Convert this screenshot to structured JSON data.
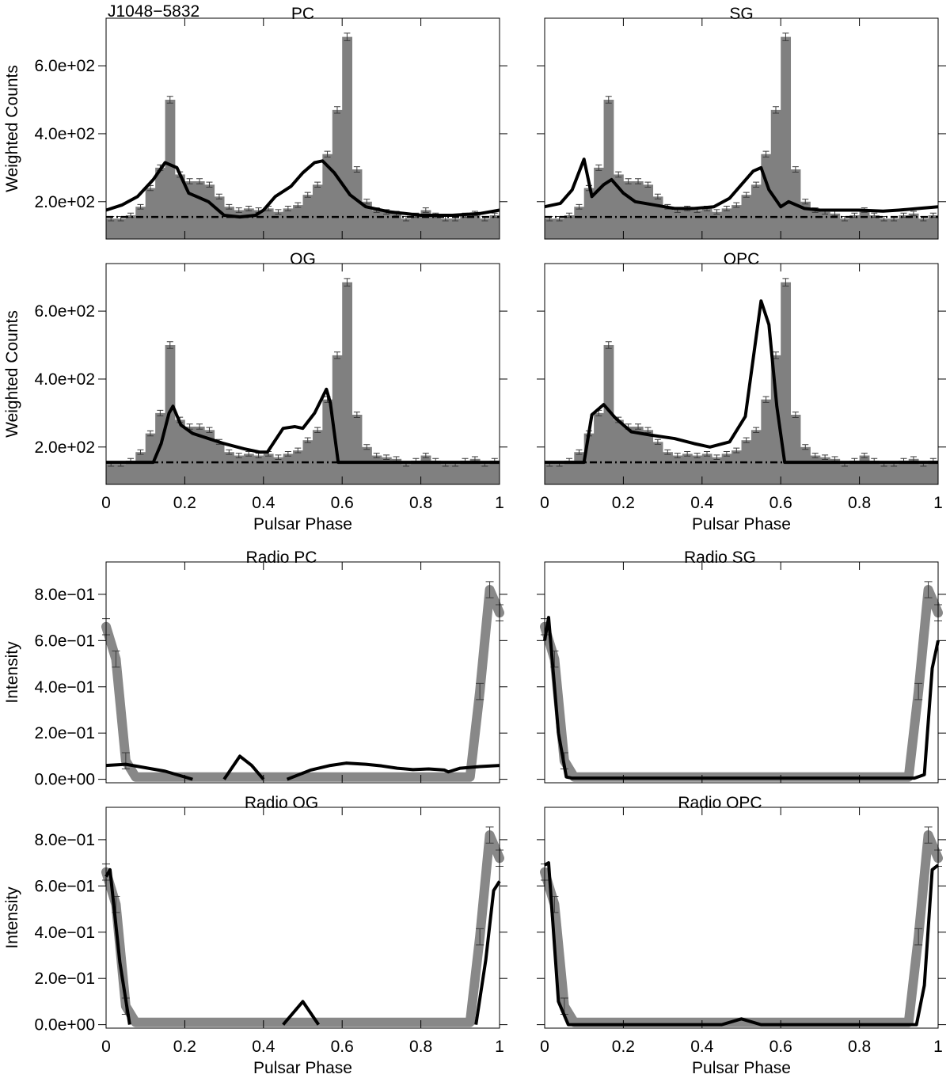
{
  "figure": {
    "pulsar_name": "J1048−5832",
    "gamma_ylabel": "Weighted Counts",
    "radio_ylabel": "Intensity",
    "xlabel": "Pulsar Phase"
  },
  "colors": {
    "histogram": "#808080",
    "error_bar": "#3a3a3a",
    "model": "#000000",
    "background": "#000000",
    "radio_data": "#888888"
  },
  "gamma_bins": [
    150,
    150,
    160,
    185,
    240,
    300,
    500,
    280,
    260,
    260,
    250,
    215,
    185,
    175,
    180,
    175,
    180,
    170,
    180,
    190,
    220,
    250,
    340,
    470,
    685,
    295,
    200,
    175,
    170,
    165,
    150,
    160,
    175,
    160,
    150,
    150,
    160,
    165,
    150,
    160
  ],
  "radio_data_curve": [
    0.66,
    0.52,
    0.08,
    0.01,
    0.01,
    0.01,
    0.01,
    0.01,
    0.01,
    0.01,
    0.01,
    0.01,
    0.01,
    0.01,
    0.01,
    0.01,
    0.01,
    0.01,
    0.01,
    0.01,
    0.01,
    0.01,
    0.01,
    0.01,
    0.01,
    0.01,
    0.01,
    0.01,
    0.01,
    0.01,
    0.01,
    0.01,
    0.01,
    0.01,
    0.01,
    0.01,
    0.01,
    0.01,
    0.38,
    0.82,
    0.72
  ],
  "chart_data": [
    {
      "type": "bar",
      "title": "PC",
      "xlabel": "",
      "ylabel": "Weighted Counts",
      "xlim": [
        0,
        1
      ],
      "ylim": [
        90,
        740
      ],
      "yticks": [
        200,
        400,
        600
      ],
      "ytick_labels": [
        "2.0e+02",
        "4.0e+02",
        "6.0e+02"
      ],
      "background_level": 155,
      "model": {
        "x": [
          0,
          0.04,
          0.08,
          0.12,
          0.15,
          0.18,
          0.21,
          0.23,
          0.26,
          0.3,
          0.34,
          0.38,
          0.4,
          0.43,
          0.47,
          0.5,
          0.53,
          0.55,
          0.58,
          0.62,
          0.66,
          0.72,
          0.8,
          0.88,
          0.95,
          1.0
        ],
        "y": [
          175,
          190,
          215,
          265,
          315,
          300,
          225,
          215,
          200,
          160,
          155,
          160,
          175,
          215,
          245,
          285,
          315,
          320,
          285,
          220,
          185,
          170,
          160,
          160,
          165,
          175
        ]
      },
      "panel_label": "J1048−5832"
    },
    {
      "type": "bar",
      "title": "SG",
      "xlabel": "",
      "ylabel": "",
      "xlim": [
        0,
        1
      ],
      "ylim": [
        90,
        740
      ],
      "yticks": [
        200,
        400,
        600
      ],
      "ytick_labels": [
        "",
        "",
        ""
      ],
      "background_level": 155,
      "model": {
        "x": [
          0,
          0.04,
          0.07,
          0.1,
          0.12,
          0.15,
          0.17,
          0.2,
          0.23,
          0.28,
          0.33,
          0.38,
          0.43,
          0.47,
          0.5,
          0.53,
          0.55,
          0.57,
          0.6,
          0.62,
          0.66,
          0.7,
          0.75,
          0.8,
          0.86,
          0.9,
          0.95,
          1.0
        ],
        "y": [
          185,
          195,
          235,
          325,
          215,
          250,
          265,
          225,
          200,
          190,
          180,
          180,
          185,
          210,
          250,
          290,
          300,
          235,
          185,
          200,
          180,
          175,
          175,
          175,
          172,
          175,
          180,
          185
        ]
      }
    },
    {
      "type": "bar",
      "title": "OG",
      "xlabel": "Pulsar Phase",
      "ylabel": "Weighted Counts",
      "xlim": [
        0,
        1
      ],
      "ylim": [
        90,
        740
      ],
      "yticks": [
        200,
        400,
        600
      ],
      "ytick_labels": [
        "2.0e+02",
        "4.0e+02",
        "6.0e+02"
      ],
      "xticks": [
        0,
        0.2,
        0.4,
        0.6,
        0.8,
        1
      ],
      "xtick_labels": [
        "0",
        "0.2",
        "0.4",
        "0.6",
        "0.8",
        "1"
      ],
      "background_level": 155,
      "model": {
        "x": [
          0,
          0.12,
          0.14,
          0.16,
          0.17,
          0.19,
          0.22,
          0.26,
          0.3,
          0.35,
          0.39,
          0.41,
          0.45,
          0.48,
          0.5,
          0.53,
          0.56,
          0.57,
          0.59,
          0.62,
          1.0
        ],
        "y": [
          155,
          155,
          210,
          300,
          320,
          265,
          240,
          225,
          210,
          195,
          185,
          185,
          255,
          260,
          255,
          300,
          370,
          330,
          155,
          155,
          155
        ]
      }
    },
    {
      "type": "bar",
      "title": "OPC",
      "xlabel": "Pulsar Phase",
      "ylabel": "",
      "xlim": [
        0,
        1
      ],
      "ylim": [
        90,
        740
      ],
      "yticks": [
        200,
        400,
        600
      ],
      "ytick_labels": [
        "",
        "",
        ""
      ],
      "xticks": [
        0,
        0.2,
        0.4,
        0.6,
        0.8,
        1
      ],
      "xtick_labels": [
        "0",
        "0.2",
        "0.4",
        "0.6",
        "0.8",
        "1"
      ],
      "background_level": 155,
      "model": {
        "x": [
          0,
          0.1,
          0.12,
          0.15,
          0.18,
          0.22,
          0.27,
          0.33,
          0.38,
          0.42,
          0.47,
          0.51,
          0.53,
          0.55,
          0.57,
          0.59,
          0.61,
          1.0
        ],
        "y": [
          155,
          155,
          295,
          325,
          285,
          245,
          235,
          225,
          210,
          200,
          215,
          290,
          460,
          630,
          560,
          320,
          155,
          155
        ]
      }
    },
    {
      "type": "line",
      "title": "Radio PC",
      "xlabel": "",
      "ylabel": "Intensity",
      "xlim": [
        0,
        1
      ],
      "ylim": [
        -0.015,
        0.94
      ],
      "yticks": [
        0,
        0.2,
        0.4,
        0.6,
        0.8
      ],
      "ytick_labels": [
        "0.0e+00",
        "2.0e−01",
        "4.0e−01",
        "6.0e−01",
        "8.0e−01"
      ],
      "model_segments": [
        {
          "x": [
            0,
            0.05,
            0.1,
            0.15,
            0.19,
            0.22
          ],
          "y": [
            0.06,
            0.065,
            0.05,
            0.035,
            0.015,
            0
          ]
        },
        {
          "x": [
            0.3,
            0.34,
            0.37,
            0.4
          ],
          "y": [
            0,
            0.1,
            0.06,
            0
          ]
        },
        {
          "x": [
            0.46,
            0.52,
            0.57,
            0.61,
            0.66,
            0.7,
            0.74,
            0.78,
            0.82,
            0.86,
            0.87,
            0.9,
            0.95,
            1.0
          ],
          "y": [
            0,
            0.04,
            0.06,
            0.07,
            0.065,
            0.058,
            0.048,
            0.042,
            0.045,
            0.04,
            0.032,
            0.048,
            0.055,
            0.06
          ]
        }
      ]
    },
    {
      "type": "line",
      "title": "Radio SG",
      "xlabel": "",
      "ylabel": "",
      "xlim": [
        0,
        1
      ],
      "ylim": [
        -0.015,
        0.94
      ],
      "yticks": [
        0,
        0.2,
        0.4,
        0.6,
        0.8
      ],
      "ytick_labels": [
        "",
        "",
        "",
        "",
        ""
      ],
      "model_segments": [
        {
          "x": [
            0,
            0.01,
            0.035,
            0.055,
            0.07,
            0.94,
            0.965,
            0.985,
            1.0
          ],
          "y": [
            0.6,
            0.7,
            0.2,
            0.01,
            0.005,
            0.005,
            0.02,
            0.48,
            0.6
          ]
        }
      ]
    },
    {
      "type": "line",
      "title": "Radio OG",
      "xlabel": "Pulsar Phase",
      "ylabel": "Intensity",
      "xlim": [
        0,
        1
      ],
      "ylim": [
        -0.015,
        0.94
      ],
      "yticks": [
        0,
        0.2,
        0.4,
        0.6,
        0.8
      ],
      "ytick_labels": [
        "0.0e+00",
        "2.0e−01",
        "4.0e−01",
        "6.0e−01",
        "8.0e−01"
      ],
      "xticks": [
        0,
        0.2,
        0.4,
        0.6,
        0.8,
        1
      ],
      "xtick_labels": [
        "0",
        "0.2",
        "0.4",
        "0.6",
        "0.8",
        "1"
      ],
      "model_segments": [
        {
          "x": [
            0,
            0.01,
            0.035,
            0.06
          ],
          "y": [
            0.64,
            0.67,
            0.27,
            0
          ]
        },
        {
          "x": [
            0.45,
            0.5,
            0.54
          ],
          "y": [
            0,
            0.1,
            0
          ]
        },
        {
          "x": [
            0.94,
            0.965,
            0.985,
            1.0
          ],
          "y": [
            0,
            0.28,
            0.58,
            0.62
          ]
        }
      ]
    },
    {
      "type": "line",
      "title": "Radio OPC",
      "xlabel": "Pulsar Phase",
      "ylabel": "",
      "xlim": [
        0,
        1
      ],
      "ylim": [
        -0.015,
        0.94
      ],
      "yticks": [
        0,
        0.2,
        0.4,
        0.6,
        0.8
      ],
      "ytick_labels": [
        "",
        "",
        "",
        "",
        ""
      ],
      "xticks": [
        0,
        0.2,
        0.4,
        0.6,
        0.8,
        1
      ],
      "xtick_labels": [
        "0",
        "0.2",
        "0.4",
        "0.6",
        "0.8",
        "1"
      ],
      "model_segments": [
        {
          "x": [
            0,
            0.01,
            0.035,
            0.06,
            0.45,
            0.5,
            0.55,
            0.945,
            0.965,
            0.985,
            1.0
          ],
          "y": [
            0.69,
            0.7,
            0.1,
            0,
            0,
            0.025,
            0,
            0,
            0.17,
            0.67,
            0.69
          ]
        }
      ]
    }
  ]
}
